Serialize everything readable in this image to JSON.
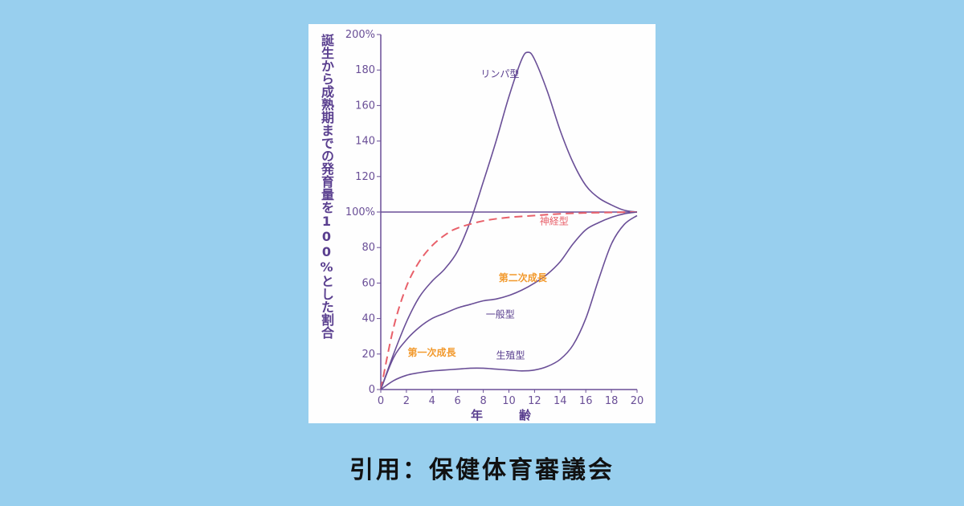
{
  "caption": "引用：保健体育審議会",
  "chart_data": {
    "type": "line",
    "title": "",
    "xlabel": "年　　　齢",
    "ylabel": "誕生から成熟期までの発育量を100%とした割合",
    "xlim": [
      0,
      20
    ],
    "ylim": [
      0,
      200
    ],
    "x_ticks": [
      "0",
      "2",
      "4",
      "6",
      "8",
      "10",
      "12",
      "14",
      "16",
      "18",
      "20"
    ],
    "y_ticks": [
      "0",
      "20",
      "40",
      "60",
      "80",
      "100%",
      "120",
      "140",
      "160",
      "180",
      "200%"
    ],
    "reference_line": 100,
    "series": [
      {
        "name": "リンパ型",
        "color": "#6a4f97",
        "dashed": false,
        "x": [
          0,
          1,
          2,
          3,
          4,
          5,
          6,
          7,
          8,
          9,
          10,
          11,
          11.5,
          12,
          13,
          14,
          15,
          16,
          17,
          18,
          19,
          20
        ],
        "y": [
          0,
          20,
          38,
          52,
          61,
          68,
          78,
          95,
          117,
          140,
          165,
          186,
          190,
          186,
          168,
          146,
          128,
          115,
          108,
          104,
          101,
          100
        ]
      },
      {
        "name": "神経型",
        "color": "#e8606a",
        "dashed": true,
        "x": [
          0,
          1,
          2,
          3,
          4,
          5,
          6,
          8,
          10,
          12,
          14,
          16,
          18,
          20
        ],
        "y": [
          0,
          35,
          58,
          72,
          81,
          87,
          91,
          95,
          97,
          98,
          99,
          99.5,
          99.8,
          100
        ]
      },
      {
        "name": "一般型",
        "color": "#6a4f97",
        "dashed": false,
        "x": [
          0,
          1,
          2,
          3,
          4,
          5,
          6,
          7,
          8,
          9,
          10,
          11,
          12,
          13,
          14,
          15,
          16,
          17,
          18,
          19,
          20
        ],
        "y": [
          0,
          18,
          28,
          35,
          40,
          43,
          46,
          48,
          50,
          51,
          53,
          56,
          60,
          65,
          72,
          82,
          90,
          94,
          97,
          99,
          100
        ]
      },
      {
        "name": "生殖型",
        "color": "#6a4f97",
        "dashed": false,
        "x": [
          0,
          1,
          2,
          3,
          4,
          5,
          6,
          7,
          8,
          9,
          10,
          11,
          12,
          13,
          14,
          15,
          16,
          17,
          18,
          19,
          20
        ],
        "y": [
          0,
          5,
          8,
          9.5,
          10.5,
          11,
          11.5,
          12,
          12,
          11.5,
          11,
          10.5,
          11,
          13,
          17,
          25,
          40,
          62,
          82,
          93,
          98
        ]
      }
    ],
    "annotations": [
      {
        "text": "第一次成長",
        "x": 2.1,
        "y": 19
      },
      {
        "text": "第二次成長",
        "x": 9.2,
        "y": 61
      }
    ]
  }
}
